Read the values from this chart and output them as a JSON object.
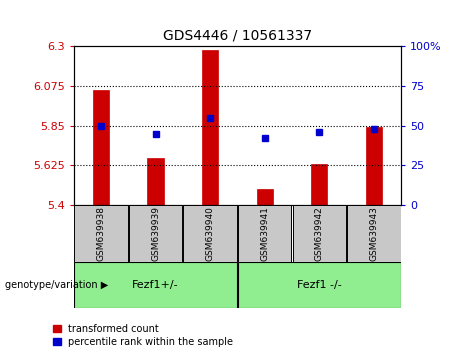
{
  "title": "GDS4446 / 10561337",
  "samples": [
    "GSM639938",
    "GSM639939",
    "GSM639940",
    "GSM639941",
    "GSM639942",
    "GSM639943"
  ],
  "bar_values": [
    6.05,
    5.67,
    6.275,
    5.49,
    5.635,
    5.84
  ],
  "percentile_values": [
    50,
    45,
    55,
    42,
    46,
    48
  ],
  "ylim_left": [
    5.4,
    6.3
  ],
  "ylim_right": [
    0,
    100
  ],
  "yticks_left": [
    5.4,
    5.625,
    5.85,
    6.075,
    6.3
  ],
  "ytick_labels_left": [
    "5.4",
    "5.625",
    "5.85",
    "6.075",
    "6.3"
  ],
  "yticks_right": [
    0,
    25,
    50,
    75,
    100
  ],
  "ytick_labels_right": [
    "0",
    "25",
    "50",
    "75",
    "100%"
  ],
  "hlines": [
    5.625,
    5.85,
    6.075
  ],
  "bar_color": "#cc0000",
  "dot_color": "#0000cc",
  "group1_label": "Fezf1+/-",
  "group2_label": "Fezf1 -/-",
  "group_label_prefix": "genotype/variation ▶",
  "group_bg_color": "#90ee90",
  "xlabel_bg": "#c8c8c8",
  "legend_red_label": "transformed count",
  "legend_blue_label": "percentile rank within the sample",
  "bar_width": 0.3,
  "figsize": [
    4.61,
    3.54
  ],
  "dpi": 100
}
